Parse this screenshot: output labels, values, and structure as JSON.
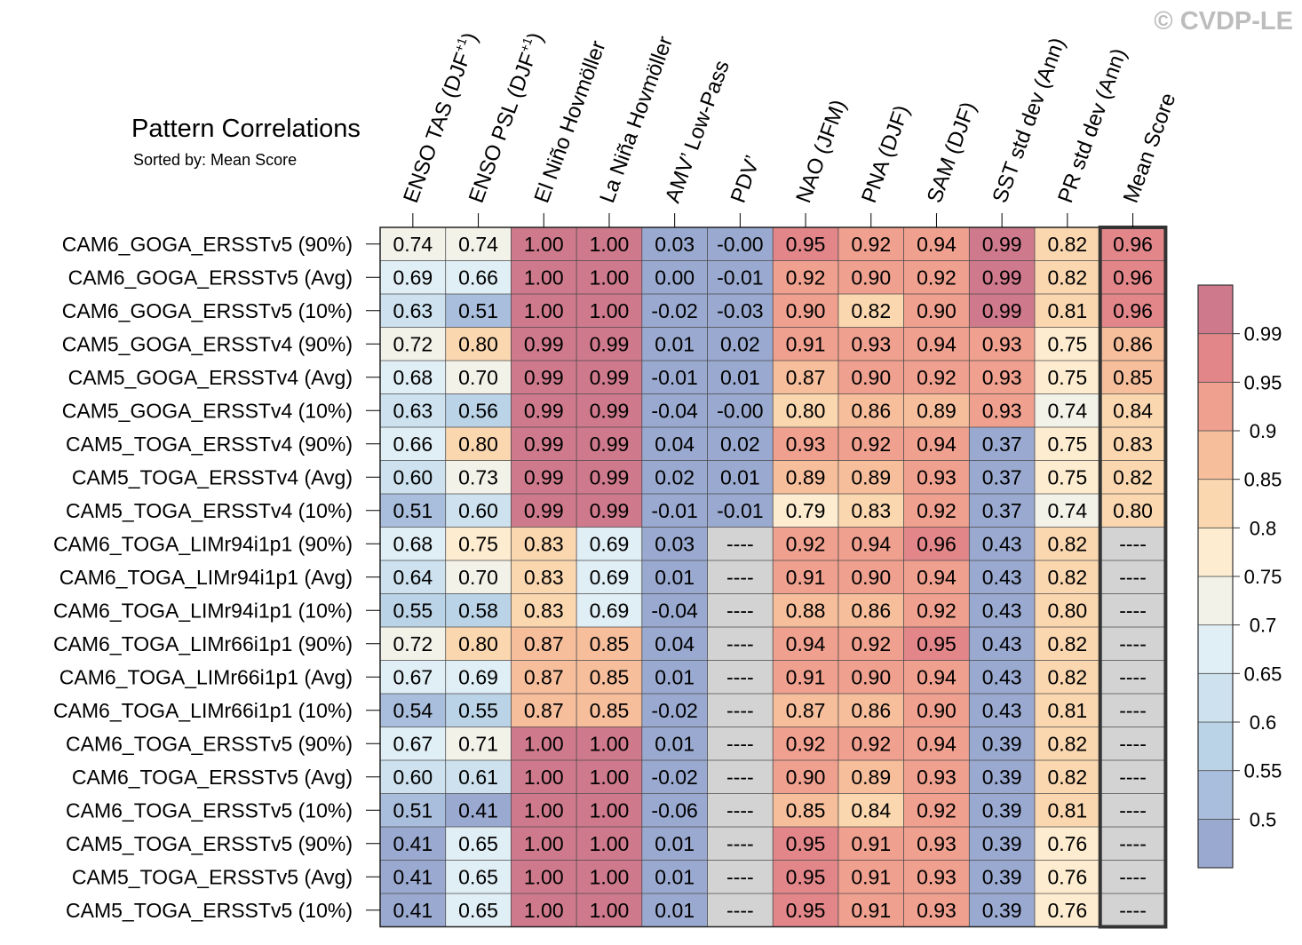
{
  "copyright": "© CVDP-LE",
  "chart_data": {
    "type": "heatmap",
    "title": "Pattern Correlations",
    "subtitle": "Sorted by: Mean Score",
    "columns": [
      {
        "base": "ENSO TAS (DJF",
        "sup": "+1",
        "tail": ")"
      },
      {
        "base": "ENSO PSL (DJF",
        "sup": "+1",
        "tail": ")"
      },
      {
        "base": "El Niño Hovmöller"
      },
      {
        "base": "La Niña Hovmöller"
      },
      {
        "base": "AMV’ Low-Pass"
      },
      {
        "base": "PDV’"
      },
      {
        "base": "NAO (JFM)"
      },
      {
        "base": "PNA (DJF)"
      },
      {
        "base": "SAM (DJF)"
      },
      {
        "base": "SST std dev (Ann)"
      },
      {
        "base": "PR std dev (Ann)"
      },
      {
        "base": "Mean Score"
      }
    ],
    "rows": [
      "CAM6_GOGA_ERSSTv5 (90%)",
      "CAM6_GOGA_ERSSTv5 (Avg)",
      "CAM6_GOGA_ERSSTv5 (10%)",
      "CAM5_GOGA_ERSSTv4 (90%)",
      "CAM5_GOGA_ERSSTv4 (Avg)",
      "CAM5_GOGA_ERSSTv4 (10%)",
      "CAM5_TOGA_ERSSTv4 (90%)",
      "CAM5_TOGA_ERSSTv4 (Avg)",
      "CAM5_TOGA_ERSSTv4 (10%)",
      "CAM6_TOGA_LIMr94i1p1 (90%)",
      "CAM6_TOGA_LIMr94i1p1 (Avg)",
      "CAM6_TOGA_LIMr94i1p1 (10%)",
      "CAM6_TOGA_LIMr66i1p1 (90%)",
      "CAM6_TOGA_LIMr66i1p1 (Avg)",
      "CAM6_TOGA_LIMr66i1p1 (10%)",
      "CAM6_TOGA_ERSSTv5 (90%)",
      "CAM6_TOGA_ERSSTv5 (Avg)",
      "CAM6_TOGA_ERSSTv5 (10%)",
      "CAM5_TOGA_ERSSTv5 (90%)",
      "CAM5_TOGA_ERSSTv5 (Avg)",
      "CAM5_TOGA_ERSSTv5 (10%)"
    ],
    "values": [
      [
        "0.74",
        "0.74",
        "1.00",
        "1.00",
        "0.03",
        "-0.00",
        "0.95",
        "0.92",
        "0.94",
        "0.99",
        "0.82",
        "0.96"
      ],
      [
        "0.69",
        "0.66",
        "1.00",
        "1.00",
        "0.00",
        "-0.01",
        "0.92",
        "0.90",
        "0.92",
        "0.99",
        "0.82",
        "0.96"
      ],
      [
        "0.63",
        "0.51",
        "1.00",
        "1.00",
        "-0.02",
        "-0.03",
        "0.90",
        "0.82",
        "0.90",
        "0.99",
        "0.81",
        "0.96"
      ],
      [
        "0.72",
        "0.80",
        "0.99",
        "0.99",
        "0.01",
        "0.02",
        "0.91",
        "0.93",
        "0.94",
        "0.93",
        "0.75",
        "0.86"
      ],
      [
        "0.68",
        "0.70",
        "0.99",
        "0.99",
        "-0.01",
        "0.01",
        "0.87",
        "0.90",
        "0.92",
        "0.93",
        "0.75",
        "0.85"
      ],
      [
        "0.63",
        "0.56",
        "0.99",
        "0.99",
        "-0.04",
        "-0.00",
        "0.80",
        "0.86",
        "0.89",
        "0.93",
        "0.74",
        "0.84"
      ],
      [
        "0.66",
        "0.80",
        "0.99",
        "0.99",
        "0.04",
        "0.02",
        "0.93",
        "0.92",
        "0.94",
        "0.37",
        "0.75",
        "0.83"
      ],
      [
        "0.60",
        "0.73",
        "0.99",
        "0.99",
        "0.02",
        "0.01",
        "0.89",
        "0.89",
        "0.93",
        "0.37",
        "0.75",
        "0.82"
      ],
      [
        "0.51",
        "0.60",
        "0.99",
        "0.99",
        "-0.01",
        "-0.01",
        "0.79",
        "0.83",
        "0.92",
        "0.37",
        "0.74",
        "0.80"
      ],
      [
        "0.68",
        "0.75",
        "0.83",
        "0.69",
        "0.03",
        "----",
        "0.92",
        "0.94",
        "0.96",
        "0.43",
        "0.82",
        "----"
      ],
      [
        "0.64",
        "0.70",
        "0.83",
        "0.69",
        "0.01",
        "----",
        "0.91",
        "0.90",
        "0.94",
        "0.43",
        "0.82",
        "----"
      ],
      [
        "0.55",
        "0.58",
        "0.83",
        "0.69",
        "-0.04",
        "----",
        "0.88",
        "0.86",
        "0.92",
        "0.43",
        "0.80",
        "----"
      ],
      [
        "0.72",
        "0.80",
        "0.87",
        "0.85",
        "0.04",
        "----",
        "0.94",
        "0.92",
        "0.95",
        "0.43",
        "0.82",
        "----"
      ],
      [
        "0.67",
        "0.69",
        "0.87",
        "0.85",
        "0.01",
        "----",
        "0.91",
        "0.90",
        "0.94",
        "0.43",
        "0.82",
        "----"
      ],
      [
        "0.54",
        "0.55",
        "0.87",
        "0.85",
        "-0.02",
        "----",
        "0.87",
        "0.86",
        "0.90",
        "0.43",
        "0.81",
        "----"
      ],
      [
        "0.67",
        "0.71",
        "1.00",
        "1.00",
        "0.01",
        "----",
        "0.92",
        "0.92",
        "0.94",
        "0.39",
        "0.82",
        "----"
      ],
      [
        "0.60",
        "0.61",
        "1.00",
        "1.00",
        "-0.02",
        "----",
        "0.90",
        "0.89",
        "0.93",
        "0.39",
        "0.82",
        "----"
      ],
      [
        "0.51",
        "0.41",
        "1.00",
        "1.00",
        "-0.06",
        "----",
        "0.85",
        "0.84",
        "0.92",
        "0.39",
        "0.81",
        "----"
      ],
      [
        "0.41",
        "0.65",
        "1.00",
        "1.00",
        "0.01",
        "----",
        "0.95",
        "0.91",
        "0.93",
        "0.39",
        "0.76",
        "----"
      ],
      [
        "0.41",
        "0.65",
        "1.00",
        "1.00",
        "0.01",
        "----",
        "0.95",
        "0.91",
        "0.93",
        "0.39",
        "0.76",
        "----"
      ],
      [
        "0.41",
        "0.65",
        "1.00",
        "1.00",
        "0.01",
        "----",
        "0.95",
        "0.91",
        "0.93",
        "0.39",
        "0.76",
        "----"
      ]
    ],
    "colorbar": {
      "levels": [
        0.5,
        0.55,
        0.6,
        0.65,
        0.7,
        0.75,
        0.8,
        0.85,
        0.9,
        0.95,
        0.99
      ],
      "labels": [
        "0.5",
        "0.55",
        "0.6",
        "0.65",
        "0.7",
        "0.75",
        "0.8",
        "0.85",
        "0.9",
        "0.95",
        "0.99"
      ],
      "colors": [
        "#9aa9d0",
        "#a9bedc",
        "#bad3e6",
        "#cde2ee",
        "#e0eef5",
        "#f3f2e9",
        "#fdeccf",
        "#fbd7b0",
        "#f7be9c",
        "#f0a08f",
        "#e2868a",
        "#cf7a8c"
      ],
      "missing_color": "#d3d3d3"
    },
    "highlight_column": "Mean Score"
  }
}
